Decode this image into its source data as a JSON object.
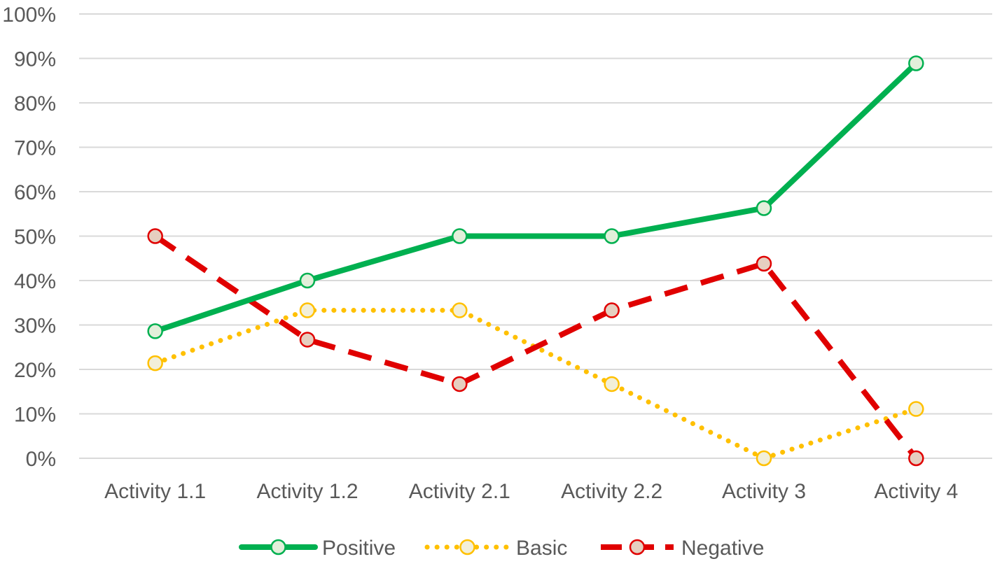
{
  "chart_data": {
    "type": "line",
    "categories": [
      "Activity 1.1",
      "Activity 1.2",
      "Activity 2.1",
      "Activity 2.2",
      "Activity 3",
      "Activity 4"
    ],
    "y_ticks": [
      "0%",
      "10%",
      "20%",
      "30%",
      "40%",
      "50%",
      "60%",
      "70%",
      "80%",
      "90%",
      "100%"
    ],
    "ylim": [
      0,
      100
    ],
    "y_unit": "%",
    "grid": true,
    "legend_position": "bottom",
    "series": [
      {
        "name": "Positive",
        "values": [
          28.6,
          40,
          50,
          50,
          56.3,
          88.9
        ],
        "color": "#00B050",
        "marker_fill": "#E2EFDA",
        "line_style": "solid"
      },
      {
        "name": "Basic",
        "values": [
          21.4,
          33.3,
          33.3,
          16.7,
          0,
          11.1
        ],
        "color": "#FFC000",
        "marker_fill": "#F2EFD9",
        "line_style": "dotted"
      },
      {
        "name": "Negative",
        "values": [
          50,
          26.7,
          16.7,
          33.3,
          43.8,
          0
        ],
        "color": "#E00000",
        "marker_fill": "#E6CFC0",
        "line_style": "dashed"
      }
    ],
    "colors": {
      "grid": "#D9D9D9",
      "text": "#595959"
    }
  }
}
